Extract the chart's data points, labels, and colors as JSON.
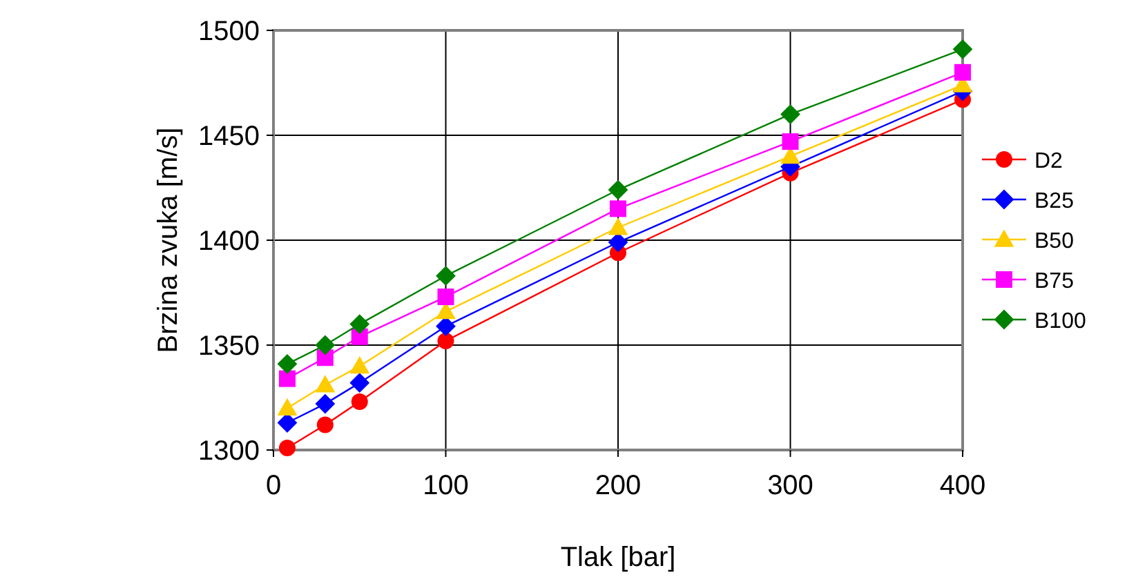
{
  "chart_data": {
    "type": "line",
    "xlabel": "Tlak [bar]",
    "ylabel": "Brzina zvuka [m/s]",
    "x": [
      8,
      30,
      50,
      100,
      200,
      300,
      400
    ],
    "xlim": [
      0,
      400
    ],
    "xticks": [
      0,
      100,
      200,
      300,
      400
    ],
    "ylim": [
      1300,
      1500
    ],
    "yticks": [
      1300,
      1350,
      1400,
      1450,
      1500
    ],
    "grid": true,
    "legend": "right",
    "line_style": "solid",
    "series": [
      {
        "name": "D2",
        "color": "#ff0000",
        "marker": "circle",
        "values": [
          1301,
          1312,
          1323,
          1352,
          1394,
          1432,
          1467
        ]
      },
      {
        "name": "B25",
        "color": "#0000ff",
        "marker": "diamond",
        "values": [
          1313,
          1322,
          1332,
          1359,
          1399,
          1435,
          1471
        ]
      },
      {
        "name": "B50",
        "color": "#ffcc00",
        "marker": "triangle",
        "values": [
          1320,
          1331,
          1340,
          1366,
          1406,
          1440,
          1474
        ]
      },
      {
        "name": "B75",
        "color": "#ff00ff",
        "marker": "square",
        "values": [
          1334,
          1344,
          1354,
          1373,
          1415,
          1447,
          1480
        ]
      },
      {
        "name": "B100",
        "color": "#008000",
        "marker": "diamond",
        "values": [
          1341,
          1350,
          1360,
          1383,
          1424,
          1460,
          1491
        ]
      }
    ]
  }
}
